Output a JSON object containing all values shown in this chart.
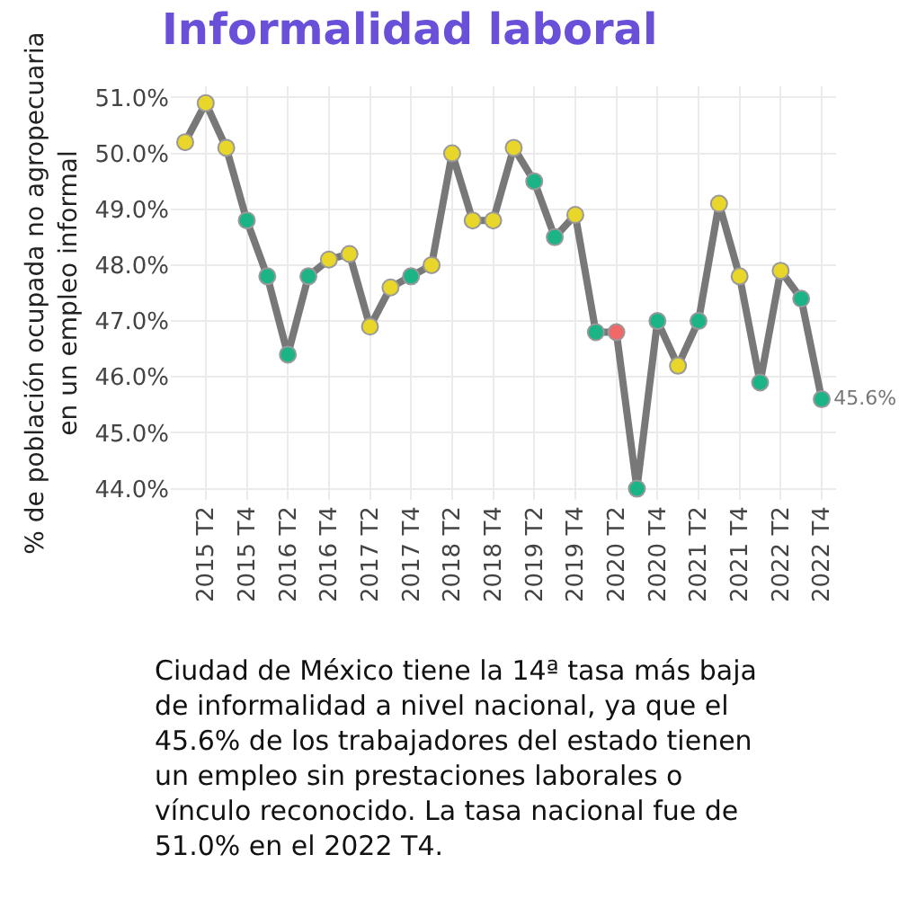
{
  "chart_data": {
    "type": "line",
    "title": "Informalidad laboral",
    "ylabel": "% de población ocupada no agropecuaria\nen un empleo informal",
    "categories": [
      null,
      "2015 T2",
      null,
      "2015 T4",
      null,
      "2016 T2",
      null,
      "2016 T4",
      null,
      "2017 T2",
      null,
      "2017 T4",
      null,
      "2018 T2",
      null,
      "2018 T4",
      null,
      "2019 T2",
      null,
      "2019 T4",
      null,
      "2020 T2",
      null,
      "2020 T4",
      null,
      "2021 T2",
      null,
      "2021 T4",
      null,
      "2022 T2",
      null,
      "2022 T4"
    ],
    "series": [
      {
        "color": "#787878",
        "values": [
          50.2,
          50.9,
          50.1,
          48.8,
          47.8,
          46.4,
          47.8,
          48.1,
          48.2,
          46.9,
          47.6,
          47.8,
          48.0,
          50.0,
          48.8,
          48.8,
          50.1,
          49.5,
          48.5,
          48.9,
          46.8,
          46.8,
          44.0,
          47.0,
          46.2,
          47.0,
          49.1,
          47.8,
          45.9,
          47.9,
          47.4,
          45.6
        ],
        "colors": [
          "#e8d62a",
          "#e8d62a",
          "#e8d62a",
          "#1ab487",
          "#1ab487",
          "#1ab487",
          "#1ab487",
          "#e8d62a",
          "#e8d62a",
          "#e8d62a",
          "#e8d62a",
          "#1ab487",
          "#e8d62a",
          "#e8d62a",
          "#e8d62a",
          "#e8d62a",
          "#e8d62a",
          "#1ab487",
          "#1ab487",
          "#e8d62a",
          "#1ab487",
          "#f06868",
          "#1ab487",
          "#1ab487",
          "#e8d62a",
          "#1ab487",
          "#e8d62a",
          "#e8d62a",
          "#1ab487",
          "#e8d62a",
          "#1ab487",
          "#1ab487"
        ],
        "value_labels": [
          null,
          null,
          null,
          null,
          null,
          null,
          null,
          null,
          null,
          null,
          null,
          null,
          null,
          null,
          null,
          null,
          null,
          null,
          null,
          null,
          null,
          null,
          null,
          null,
          null,
          null,
          null,
          null,
          null,
          null,
          null,
          "45.6%"
        ]
      }
    ],
    "ylim": [
      43.8,
      51.2
    ],
    "yticks": [
      {
        "value": 44,
        "label": "44.0%"
      },
      {
        "value": 45,
        "label": "45.0%"
      },
      {
        "value": 46,
        "label": "46.0%"
      },
      {
        "value": 47,
        "label": "47.0%"
      },
      {
        "value": 48,
        "label": "48.0%"
      },
      {
        "value": 49,
        "label": "49.0%"
      },
      {
        "value": 50,
        "label": "50.0%"
      },
      {
        "value": 51,
        "label": "51.0%"
      }
    ],
    "grid": true,
    "marker": "circle",
    "line_style": "solid",
    "annotations": [
      "Ciudad de México tiene la 14ª tasa más baja\nde informalidad a nivel nacional, ya que el\n45.6% de los trabajadores del estado tienen\nun empleo sin prestaciones laborales o\nvínculo reconocido. La tasa nacional fue de\n51.0% en el 2022 T4."
    ]
  }
}
